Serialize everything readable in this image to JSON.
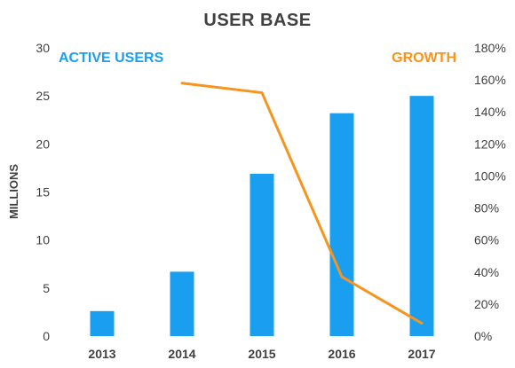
{
  "chart_data": {
    "type": "bar",
    "title": "USER BASE",
    "categories": [
      "2013",
      "2014",
      "2015",
      "2016",
      "2017"
    ],
    "ylabel": "MILLIONS",
    "ylim": [
      0,
      30
    ],
    "yticks": [
      "0",
      "5",
      "10",
      "15",
      "20",
      "25",
      "30"
    ],
    "y2lim": [
      0,
      180
    ],
    "y2ticks": [
      "0%",
      "20%",
      "40%",
      "60%",
      "80%",
      "100%",
      "120%",
      "140%",
      "160%",
      "180%"
    ],
    "grid": false,
    "series": [
      {
        "name": "ACTIVE USERS",
        "type": "bar",
        "axis": "left",
        "color": "#1a9ff0",
        "values": [
          2.6,
          6.7,
          16.9,
          23.2,
          25.0
        ]
      },
      {
        "name": "GROWTH",
        "type": "line",
        "axis": "right",
        "color": "#f7941d",
        "values": [
          null,
          158,
          152,
          37,
          8
        ]
      }
    ],
    "legend": "series names printed in the plot area: top-left and top-right"
  }
}
